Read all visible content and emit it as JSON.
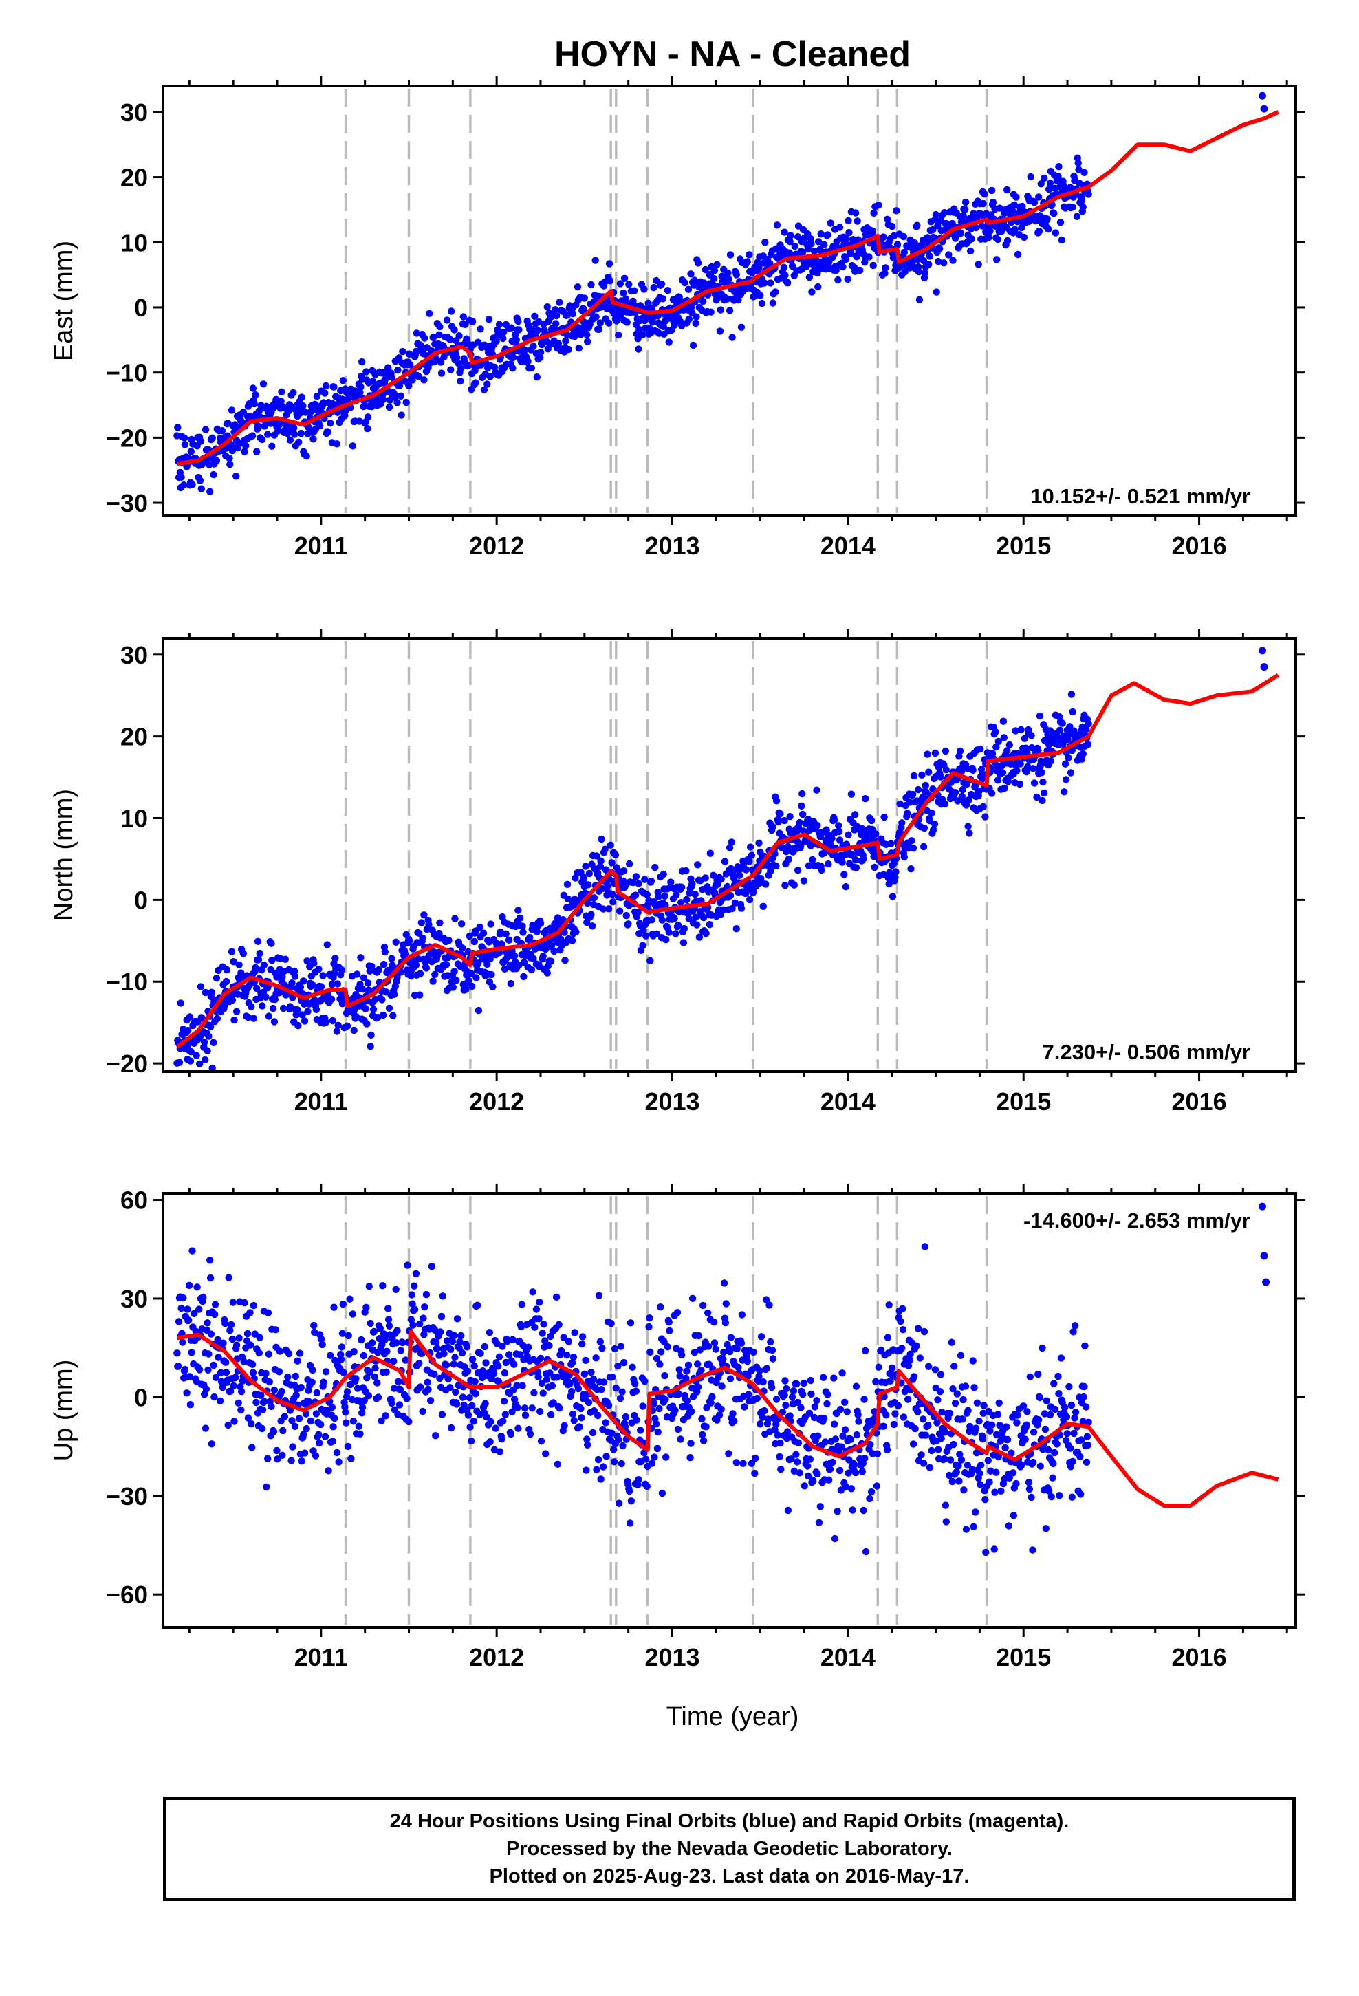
{
  "title": "HOYN  - NA - Cleaned",
  "colors": {
    "points": "#0000ff",
    "model": "#ff0000",
    "breaks": "#bbbbbb",
    "axes": "#000000"
  },
  "footer": {
    "line1": "24 Hour Positions Using Final Orbits (blue) and Rapid Orbits (magenta).",
    "line2": "Processed by the Nevada Geodetic Laboratory.",
    "line3": "Plotted on 2025-Aug-23. Last data on 2016-May-17."
  },
  "chart_data": [
    {
      "type": "scatter",
      "ylabel": "East (mm)",
      "xlabel": "",
      "xlim": [
        2010.1,
        2016.55
      ],
      "ylim": [
        -32,
        34
      ],
      "yticks": [
        -30,
        -20,
        -10,
        0,
        10,
        20,
        30
      ],
      "xticks": [
        2011,
        2012,
        2013,
        2014,
        2015,
        2016
      ],
      "rate_label": "10.152+/- 0.521 mm/yr",
      "rate_position": "bottom-right",
      "breaks": [
        2011.14,
        2011.5,
        2011.85,
        2012.65,
        2012.68,
        2012.86,
        2013.46,
        2014.17,
        2014.28,
        2014.79
      ],
      "data_range": [
        2010.18,
        2015.37
      ],
      "model": [
        [
          2010.18,
          -24
        ],
        [
          2010.3,
          -23.5
        ],
        [
          2010.45,
          -21
        ],
        [
          2010.6,
          -17.5
        ],
        [
          2010.75,
          -17
        ],
        [
          2010.9,
          -18
        ],
        [
          2011.05,
          -16
        ],
        [
          2011.14,
          -15
        ],
        [
          2011.3,
          -13.5
        ],
        [
          2011.5,
          -10
        ],
        [
          2011.65,
          -7
        ],
        [
          2011.8,
          -6
        ],
        [
          2011.85,
          -7
        ],
        [
          2011.86,
          -8.5
        ],
        [
          2012.0,
          -7.5
        ],
        [
          2012.2,
          -5
        ],
        [
          2012.4,
          -3.5
        ],
        [
          2012.55,
          0
        ],
        [
          2012.65,
          2.5
        ],
        [
          2012.66,
          0.8
        ],
        [
          2012.86,
          -0.8
        ],
        [
          2013.0,
          -0.5
        ],
        [
          2013.2,
          2.5
        ],
        [
          2013.45,
          4
        ],
        [
          2013.47,
          4.5
        ],
        [
          2013.65,
          7.5
        ],
        [
          2013.85,
          8
        ],
        [
          2014.05,
          9.5
        ],
        [
          2014.17,
          11
        ],
        [
          2014.18,
          8.5
        ],
        [
          2014.28,
          9
        ],
        [
          2014.29,
          7
        ],
        [
          2014.45,
          9
        ],
        [
          2014.6,
          12
        ],
        [
          2014.79,
          13.5
        ],
        [
          2014.8,
          13
        ],
        [
          2015.0,
          14
        ],
        [
          2015.2,
          17
        ],
        [
          2015.37,
          18.5
        ],
        [
          2015.5,
          21
        ],
        [
          2015.65,
          25
        ],
        [
          2015.8,
          25
        ],
        [
          2015.95,
          24
        ],
        [
          2016.1,
          26
        ],
        [
          2016.25,
          28
        ],
        [
          2016.37,
          29
        ],
        [
          2016.45,
          30
        ]
      ],
      "extra_points": [
        [
          2016.36,
          32.5
        ],
        [
          2016.37,
          30.5
        ]
      ]
    },
    {
      "type": "scatter",
      "ylabel": "North (mm)",
      "xlabel": "",
      "xlim": [
        2010.1,
        2016.55
      ],
      "ylim": [
        -21,
        32
      ],
      "yticks": [
        -20,
        -10,
        0,
        10,
        20,
        30
      ],
      "xticks": [
        2011,
        2012,
        2013,
        2014,
        2015,
        2016
      ],
      "rate_label": "7.230+/- 0.506 mm/yr",
      "rate_position": "bottom-right",
      "breaks": [
        2011.14,
        2011.5,
        2011.85,
        2012.65,
        2012.68,
        2012.86,
        2013.46,
        2014.17,
        2014.28,
        2014.79
      ],
      "data_range": [
        2010.18,
        2015.37
      ],
      "model": [
        [
          2010.18,
          -18
        ],
        [
          2010.3,
          -16
        ],
        [
          2010.45,
          -11.5
        ],
        [
          2010.6,
          -9.5
        ],
        [
          2010.75,
          -10.5
        ],
        [
          2010.9,
          -12
        ],
        [
          2011.05,
          -11
        ],
        [
          2011.14,
          -11
        ],
        [
          2011.15,
          -13
        ],
        [
          2011.3,
          -11.5
        ],
        [
          2011.5,
          -7
        ],
        [
          2011.65,
          -5.5
        ],
        [
          2011.8,
          -7
        ],
        [
          2011.85,
          -8
        ],
        [
          2011.86,
          -6.5
        ],
        [
          2012.0,
          -6
        ],
        [
          2012.2,
          -5.5
        ],
        [
          2012.35,
          -4
        ],
        [
          2012.5,
          0
        ],
        [
          2012.65,
          3.5
        ],
        [
          2012.68,
          3
        ],
        [
          2012.69,
          1
        ],
        [
          2012.86,
          -1.5
        ],
        [
          2013.0,
          -1
        ],
        [
          2013.2,
          -0.5
        ],
        [
          2013.46,
          3
        ],
        [
          2013.6,
          7
        ],
        [
          2013.75,
          8
        ],
        [
          2013.9,
          6
        ],
        [
          2014.05,
          6.5
        ],
        [
          2014.17,
          7
        ],
        [
          2014.18,
          5
        ],
        [
          2014.28,
          5.5
        ],
        [
          2014.29,
          7
        ],
        [
          2014.45,
          12
        ],
        [
          2014.6,
          15.5
        ],
        [
          2014.79,
          14
        ],
        [
          2014.8,
          17
        ],
        [
          2015.0,
          17.5
        ],
        [
          2015.2,
          18
        ],
        [
          2015.37,
          20
        ],
        [
          2015.5,
          25
        ],
        [
          2015.63,
          26.5
        ],
        [
          2015.8,
          24.5
        ],
        [
          2015.95,
          24
        ],
        [
          2016.1,
          25
        ],
        [
          2016.3,
          25.5
        ],
        [
          2016.45,
          27.5
        ]
      ],
      "extra_points": [
        [
          2016.36,
          30.5
        ],
        [
          2016.37,
          28.5
        ]
      ]
    },
    {
      "type": "scatter",
      "ylabel": "Up (mm)",
      "xlabel": "Time (year)",
      "xlim": [
        2010.1,
        2016.55
      ],
      "ylim": [
        -70,
        62
      ],
      "yticks": [
        -60,
        -30,
        0,
        30,
        60
      ],
      "xticks": [
        2011,
        2012,
        2013,
        2014,
        2015,
        2016
      ],
      "rate_label": "-14.600+/- 2.653 mm/yr",
      "rate_position": "top-right",
      "breaks": [
        2011.14,
        2011.5,
        2011.85,
        2012.65,
        2012.68,
        2012.86,
        2013.46,
        2014.17,
        2014.28,
        2014.79
      ],
      "data_range": [
        2010.18,
        2015.37
      ],
      "model": [
        [
          2010.18,
          18
        ],
        [
          2010.3,
          19
        ],
        [
          2010.45,
          14
        ],
        [
          2010.6,
          5
        ],
        [
          2010.75,
          -1
        ],
        [
          2010.9,
          -4
        ],
        [
          2011.05,
          0
        ],
        [
          2011.14,
          6
        ],
        [
          2011.3,
          12
        ],
        [
          2011.45,
          8
        ],
        [
          2011.5,
          3
        ],
        [
          2011.51,
          20
        ],
        [
          2011.65,
          10
        ],
        [
          2011.85,
          3
        ],
        [
          2012.0,
          3
        ],
        [
          2012.15,
          7
        ],
        [
          2012.3,
          11
        ],
        [
          2012.45,
          7
        ],
        [
          2012.6,
          -3
        ],
        [
          2012.75,
          -12
        ],
        [
          2012.86,
          -16
        ],
        [
          2012.87,
          1
        ],
        [
          2013.0,
          2
        ],
        [
          2013.15,
          6
        ],
        [
          2013.3,
          9
        ],
        [
          2013.46,
          4
        ],
        [
          2013.6,
          -5
        ],
        [
          2013.8,
          -15
        ],
        [
          2013.95,
          -18
        ],
        [
          2014.1,
          -14
        ],
        [
          2014.17,
          -8
        ],
        [
          2014.18,
          1
        ],
        [
          2014.28,
          3
        ],
        [
          2014.29,
          8
        ],
        [
          2014.4,
          1
        ],
        [
          2014.55,
          -8
        ],
        [
          2014.7,
          -14
        ],
        [
          2014.79,
          -17
        ],
        [
          2014.8,
          -15
        ],
        [
          2014.95,
          -19
        ],
        [
          2015.1,
          -14
        ],
        [
          2015.25,
          -8
        ],
        [
          2015.37,
          -9
        ],
        [
          2015.5,
          -18
        ],
        [
          2015.65,
          -28
        ],
        [
          2015.8,
          -33
        ],
        [
          2015.95,
          -33
        ],
        [
          2016.1,
          -27
        ],
        [
          2016.3,
          -23
        ],
        [
          2016.45,
          -25
        ]
      ],
      "extra_points": [
        [
          2016.36,
          58
        ],
        [
          2016.37,
          43
        ],
        [
          2016.38,
          35
        ]
      ]
    }
  ]
}
